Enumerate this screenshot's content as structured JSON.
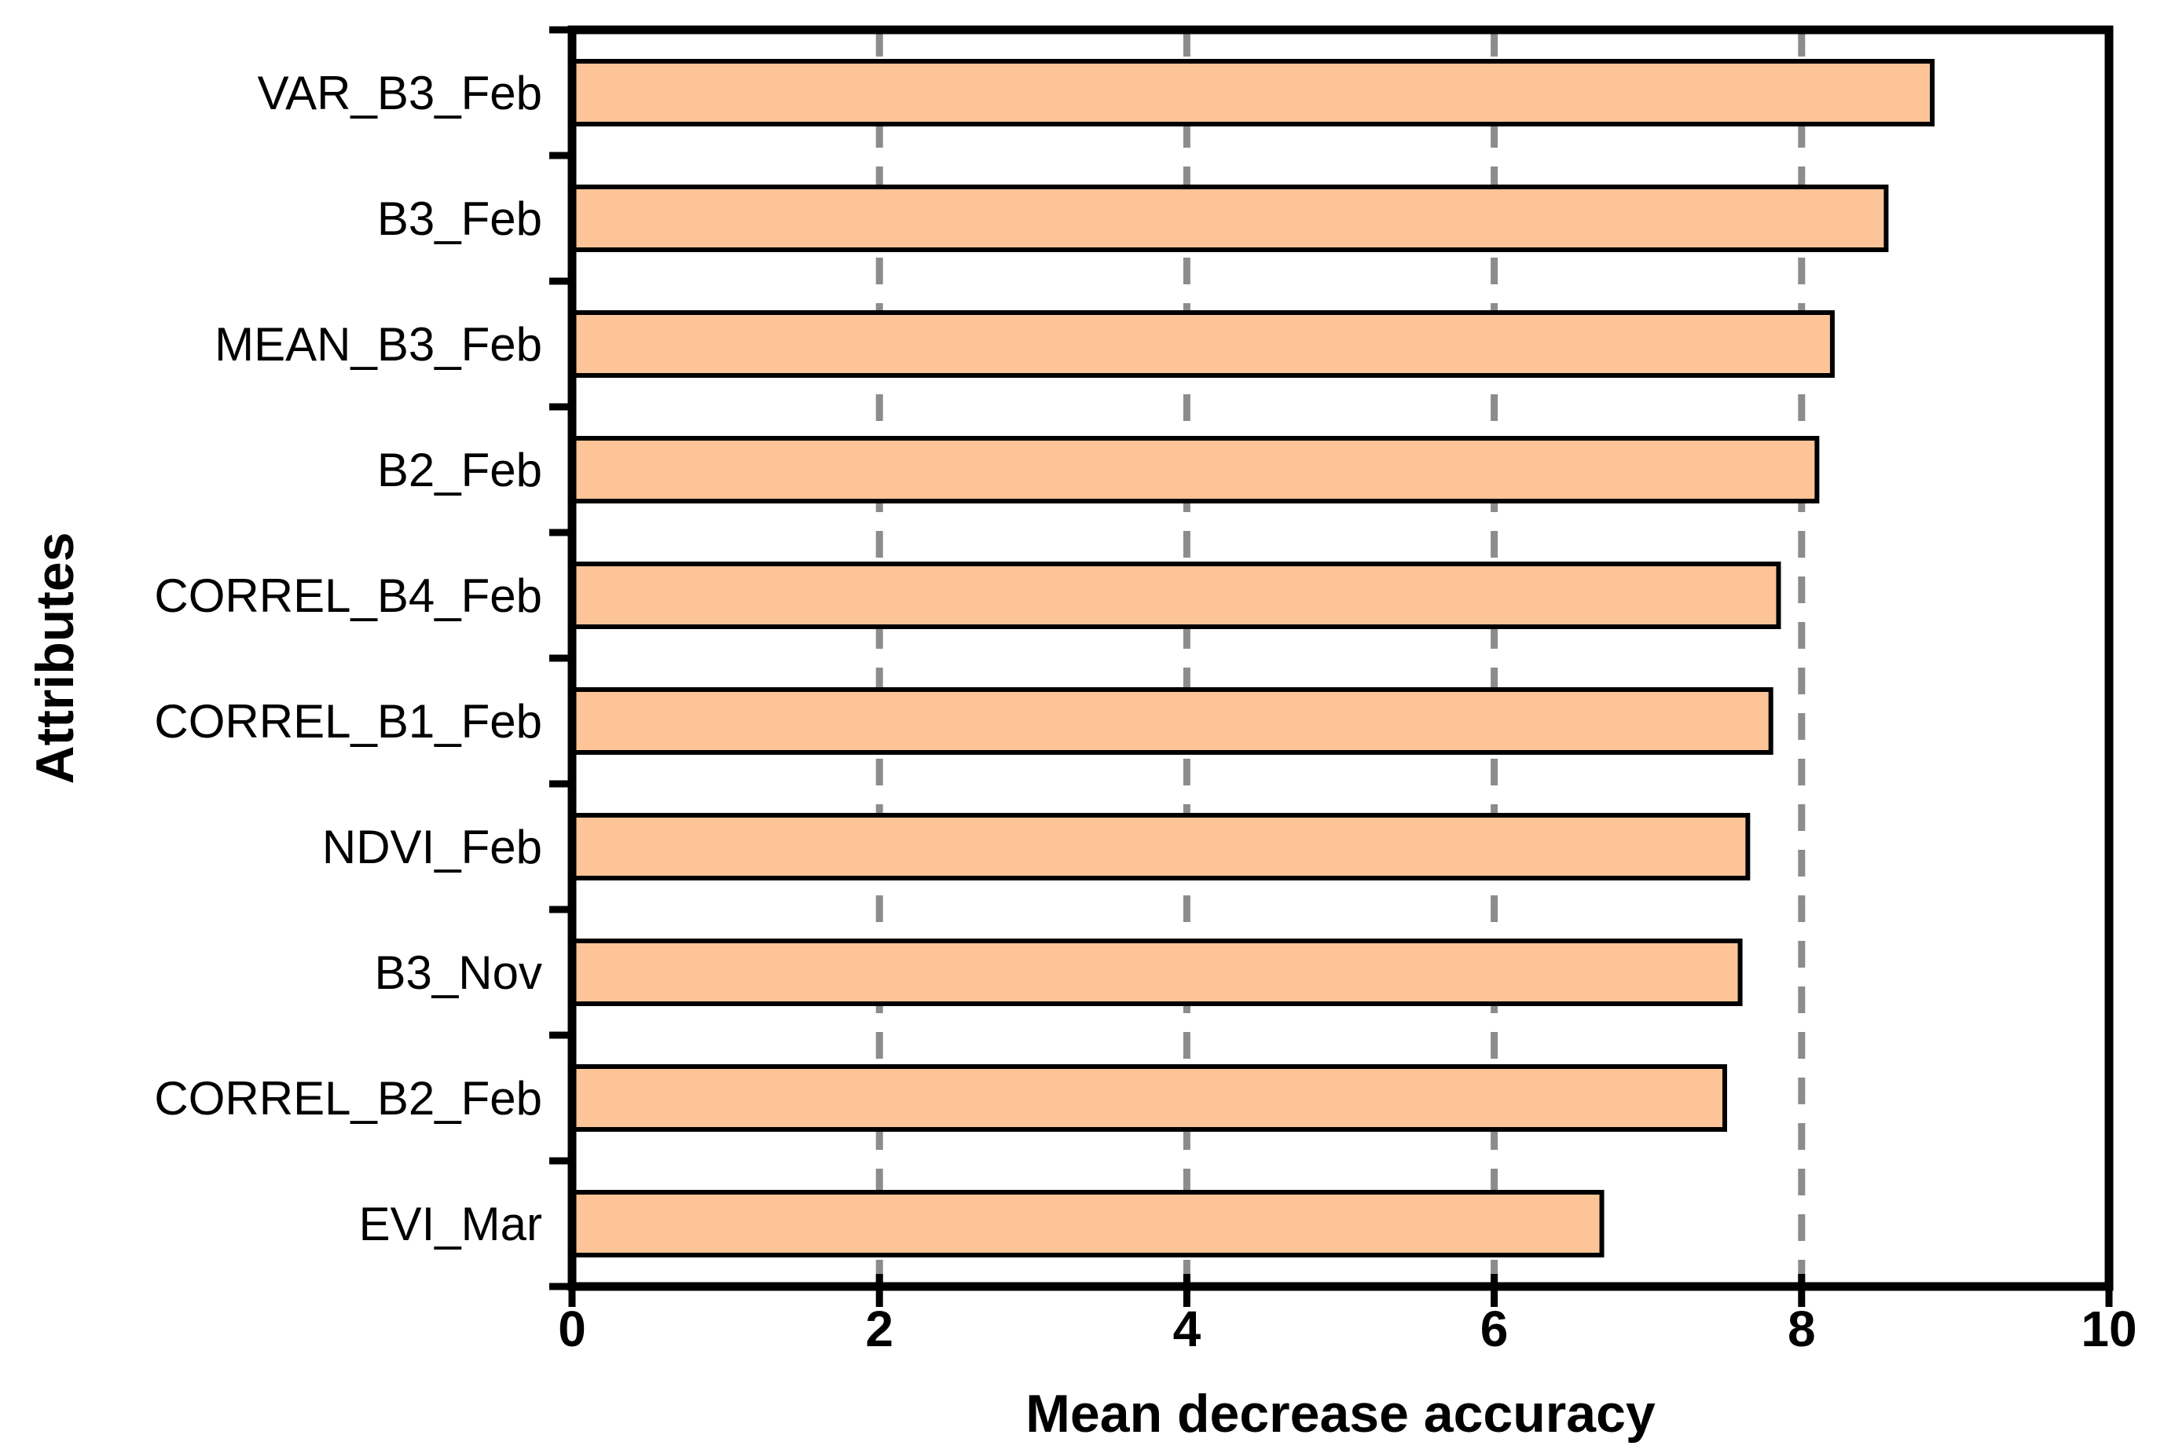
{
  "chart_data": {
    "type": "bar",
    "orientation": "horizontal",
    "title": "",
    "xlabel": "Mean decrease accuracy",
    "ylabel": "Attributes",
    "categories": [
      "VAR_B3_Feb",
      "B3_Feb",
      "MEAN_B3_Feb",
      "B2_Feb",
      "CORREL_B4_Feb",
      "CORREL_B1_Feb",
      "NDVI_Feb",
      "B3_Nov",
      "CORREL_B2_Feb",
      "EVI_Mar"
    ],
    "values": [
      8.85,
      8.55,
      8.2,
      8.1,
      7.85,
      7.8,
      7.65,
      7.6,
      7.5,
      6.7
    ],
    "xlim": [
      0,
      10
    ],
    "xticks": [
      0,
      2,
      4,
      6,
      8,
      10
    ],
    "gridlines": {
      "at": [
        2,
        4,
        6,
        8
      ],
      "style": "dashed",
      "behind_bars": true
    },
    "legend": "none",
    "colors": {
      "bar_fill": "#FCC497",
      "bar_border": "#000000",
      "axis": "#000000",
      "gridline": "#8c8c8c",
      "text": "#000000",
      "background": "#ffffff"
    }
  }
}
